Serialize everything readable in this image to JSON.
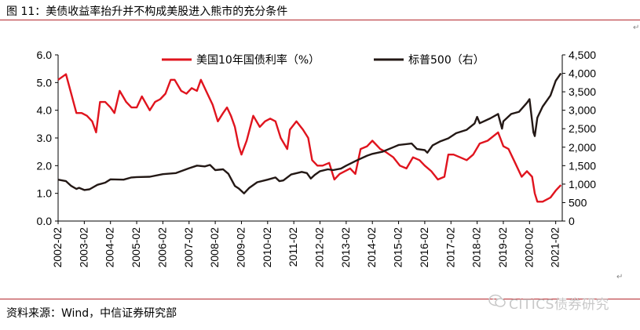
{
  "title": "图 11：美债收益率抬升并不构成美股进入熊市的充分条件",
  "source": "资料来源：Wind，中信证券研究部",
  "watermark": "CITICS债券研究",
  "colors": {
    "accent_rule": "#b4282d",
    "series_10y": "#e0141e",
    "series_spx": "#231815"
  },
  "chart_data": {
    "type": "line",
    "title": "",
    "legend": [
      "美国10年国债利率（%）",
      "标普500（右）"
    ],
    "legend_placement": "top-center",
    "grid": false,
    "x_tick_labels": [
      "2002-02",
      "2003-02",
      "2004-02",
      "2005-02",
      "2006-02",
      "2007-02",
      "2008-02",
      "2009-02",
      "2010-02",
      "2011-02",
      "2012-02",
      "2013-02",
      "2014-02",
      "2015-02",
      "2016-02",
      "2017-02",
      "2018-02",
      "2019-02",
      "2020-02",
      "2021-02"
    ],
    "x_range": [
      2002.0,
      2021.25
    ],
    "y_left": {
      "range": [
        0,
        6
      ],
      "ticks": [
        "0.0",
        "1.0",
        "2.0",
        "3.0",
        "4.0",
        "5.0",
        "6.0"
      ]
    },
    "y_right": {
      "range": [
        0,
        4500
      ],
      "ticks": [
        "0",
        "500",
        "1,000",
        "1,500",
        "2,000",
        "2,500",
        "3,000",
        "3,500",
        "4,000",
        "4,500"
      ]
    },
    "series": [
      {
        "name": "美国10年国债利率（%）",
        "axis": "left",
        "color": "#e0141e",
        "x": [
          2002.0,
          2002.3,
          2002.5,
          2002.7,
          2002.9,
          2003.1,
          2003.3,
          2003.45,
          2003.6,
          2003.8,
          2004.0,
          2004.15,
          2004.35,
          2004.6,
          2004.8,
          2005.0,
          2005.2,
          2005.5,
          2005.7,
          2005.9,
          2006.1,
          2006.3,
          2006.45,
          2006.7,
          2006.9,
          2007.1,
          2007.3,
          2007.45,
          2007.7,
          2007.9,
          2008.1,
          2008.3,
          2008.45,
          2008.6,
          2008.75,
          2008.9,
          2009.0,
          2009.2,
          2009.45,
          2009.7,
          2009.9,
          2010.1,
          2010.3,
          2010.5,
          2010.75,
          2010.85,
          2011.1,
          2011.35,
          2011.55,
          2011.7,
          2011.9,
          2012.1,
          2012.35,
          2012.55,
          2012.75,
          2012.95,
          2013.15,
          2013.35,
          2013.55,
          2013.8,
          2014.0,
          2014.3,
          2014.5,
          2014.8,
          2015.05,
          2015.3,
          2015.55,
          2015.8,
          2016.0,
          2016.25,
          2016.5,
          2016.75,
          2016.9,
          2017.1,
          2017.35,
          2017.6,
          2017.85,
          2018.1,
          2018.4,
          2018.8,
          2019.0,
          2019.2,
          2019.45,
          2019.7,
          2019.9,
          2020.1,
          2020.2,
          2020.3,
          2020.5,
          2020.8,
          2021.0,
          2021.2
        ],
        "values": [
          5.1,
          5.3,
          4.6,
          3.9,
          3.9,
          3.8,
          3.6,
          3.2,
          4.3,
          4.3,
          4.1,
          3.9,
          4.7,
          4.3,
          4.1,
          4.1,
          4.5,
          4.0,
          4.3,
          4.4,
          4.6,
          5.1,
          5.1,
          4.7,
          4.6,
          4.8,
          4.7,
          5.1,
          4.6,
          4.2,
          3.6,
          3.9,
          4.1,
          3.8,
          3.4,
          2.7,
          2.4,
          2.9,
          3.8,
          3.4,
          3.6,
          3.7,
          3.6,
          3.0,
          2.6,
          3.3,
          3.6,
          3.3,
          3.0,
          2.2,
          2.0,
          2.0,
          2.1,
          1.5,
          1.7,
          1.8,
          1.9,
          1.7,
          2.6,
          2.7,
          2.9,
          2.6,
          2.5,
          2.3,
          2.0,
          1.9,
          2.3,
          2.2,
          2.0,
          1.8,
          1.5,
          1.6,
          2.4,
          2.4,
          2.3,
          2.2,
          2.4,
          2.8,
          2.9,
          3.2,
          2.7,
          2.6,
          2.1,
          1.6,
          1.8,
          1.6,
          1.0,
          0.7,
          0.7,
          0.85,
          1.1,
          1.3
        ]
      },
      {
        "name": "标普500（右）",
        "axis": "right",
        "color": "#231815",
        "x": [
          2002.0,
          2002.3,
          2002.5,
          2002.7,
          2002.8,
          2003.0,
          2003.2,
          2003.5,
          2003.8,
          2004.0,
          2004.5,
          2004.8,
          2005.0,
          2005.5,
          2006.0,
          2006.5,
          2007.0,
          2007.3,
          2007.6,
          2007.8,
          2008.0,
          2008.3,
          2008.5,
          2008.75,
          2008.9,
          2009.1,
          2009.3,
          2009.6,
          2010.0,
          2010.3,
          2010.45,
          2010.6,
          2010.9,
          2011.3,
          2011.5,
          2011.65,
          2011.8,
          2012.0,
          2012.3,
          2012.5,
          2012.8,
          2013.0,
          2013.4,
          2013.8,
          2014.0,
          2014.4,
          2014.8,
          2015.0,
          2015.5,
          2015.7,
          2016.0,
          2016.1,
          2016.3,
          2016.6,
          2016.9,
          2017.2,
          2017.6,
          2017.9,
          2018.0,
          2018.1,
          2018.5,
          2018.8,
          2018.95,
          2019.0,
          2019.3,
          2019.6,
          2019.9,
          2020.0,
          2020.15,
          2020.2,
          2020.3,
          2020.5,
          2020.8,
          2021.0,
          2021.2
        ],
        "values": [
          1120,
          1080,
          950,
          870,
          900,
          840,
          860,
          980,
          1040,
          1130,
          1120,
          1180,
          1190,
          1200,
          1270,
          1300,
          1430,
          1500,
          1480,
          1520,
          1380,
          1400,
          1280,
          950,
          880,
          750,
          900,
          1050,
          1120,
          1180,
          1080,
          1100,
          1260,
          1330,
          1300,
          1150,
          1250,
          1350,
          1400,
          1380,
          1420,
          1500,
          1640,
          1770,
          1820,
          1880,
          2000,
          2060,
          2100,
          1950,
          1920,
          1850,
          2050,
          2160,
          2240,
          2380,
          2470,
          2640,
          2820,
          2650,
          2780,
          2900,
          2500,
          2700,
          2900,
          2960,
          3200,
          3300,
          2400,
          2300,
          2800,
          3100,
          3400,
          3800,
          4000
        ]
      }
    ]
  }
}
